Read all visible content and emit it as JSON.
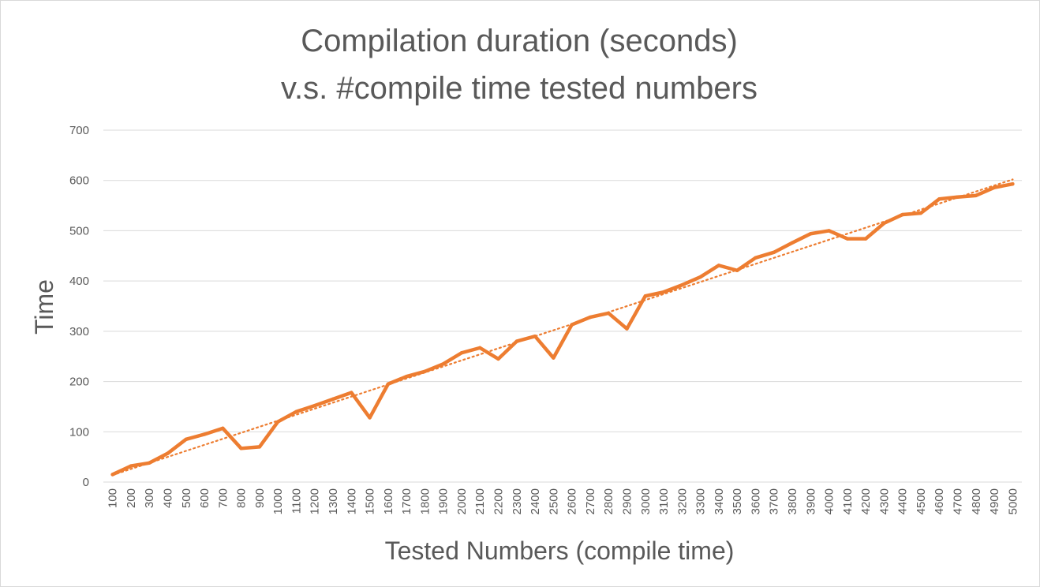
{
  "chart_data": {
    "type": "line",
    "title_lines": [
      "Compilation duration (seconds)",
      "v.s. #compile time tested numbers"
    ],
    "xlabel": "Tested Numbers (compile time)",
    "ylabel": "Time",
    "ylim": [
      0,
      700
    ],
    "yticks": [
      0,
      100,
      200,
      300,
      400,
      500,
      600,
      700
    ],
    "grid": true,
    "legend": "none",
    "categories": [
      "100",
      "200",
      "300",
      "400",
      "500",
      "600",
      "700",
      "800",
      "900",
      "1000",
      "1100",
      "1200",
      "1300",
      "1400",
      "1500",
      "1600",
      "1700",
      "1800",
      "1900",
      "2000",
      "2100",
      "2200",
      "2300",
      "2400",
      "2500",
      "2600",
      "2700",
      "2800",
      "2900",
      "3000",
      "3100",
      "3200",
      "3300",
      "3400",
      "3500",
      "3600",
      "3700",
      "3800",
      "3900",
      "4000",
      "4100",
      "4200",
      "4300",
      "4400",
      "4500",
      "4600",
      "4700",
      "4800",
      "4900",
      "5000"
    ],
    "series": [
      {
        "values": [
          15,
          32,
          38,
          57,
          85,
          95,
          107,
          67,
          70,
          120,
          140,
          152,
          165,
          178,
          128,
          195,
          210,
          220,
          235,
          257,
          267,
          245,
          280,
          290,
          247,
          313,
          328,
          336,
          305,
          370,
          378,
          392,
          408,
          431,
          421,
          446,
          457,
          476,
          494,
          500,
          484,
          484,
          515,
          532,
          535,
          563,
          567,
          570,
          586,
          593
        ]
      }
    ],
    "trendline": {
      "type": "linear",
      "style": "dotted",
      "start": 14,
      "end": 602
    },
    "colors": {
      "line": "#ed7d31",
      "trendline": "#ed7d31",
      "grid": "#d9d9d9",
      "text": "#595959"
    }
  }
}
